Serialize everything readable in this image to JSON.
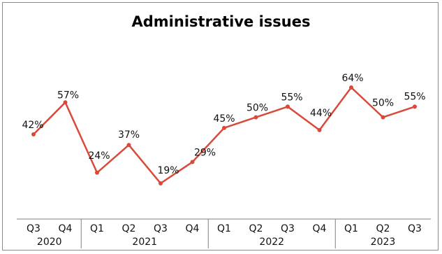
{
  "chart_data": {
    "type": "line",
    "title": "Administrative issues",
    "categories": [
      "Q3",
      "Q4",
      "Q1",
      "Q2",
      "Q3",
      "Q4",
      "Q1",
      "Q2",
      "Q3",
      "Q4",
      "Q1",
      "Q2",
      "Q3"
    ],
    "years": [
      {
        "label": "2020",
        "quarters": [
          "Q3",
          "Q4"
        ]
      },
      {
        "label": "2021",
        "quarters": [
          "Q1",
          "Q2",
          "Q3",
          "Q4"
        ]
      },
      {
        "label": "2022",
        "quarters": [
          "Q1",
          "Q2",
          "Q3",
          "Q4"
        ]
      },
      {
        "label": "2023",
        "quarters": [
          "Q1",
          "Q2",
          "Q3"
        ]
      }
    ],
    "series": [
      {
        "values": [
          42,
          57,
          24,
          37,
          19,
          29,
          45,
          50,
          55,
          44,
          64,
          50,
          55
        ],
        "labels": [
          "42%",
          "57%",
          "24%",
          "37%",
          "19%",
          "29%",
          "45%",
          "50%",
          "55%",
          "44%",
          "64%",
          "50%",
          "55%"
        ],
        "color": "#d94a3a"
      }
    ],
    "ylim": [
      0,
      100
    ],
    "grid": false,
    "legend": "none"
  }
}
